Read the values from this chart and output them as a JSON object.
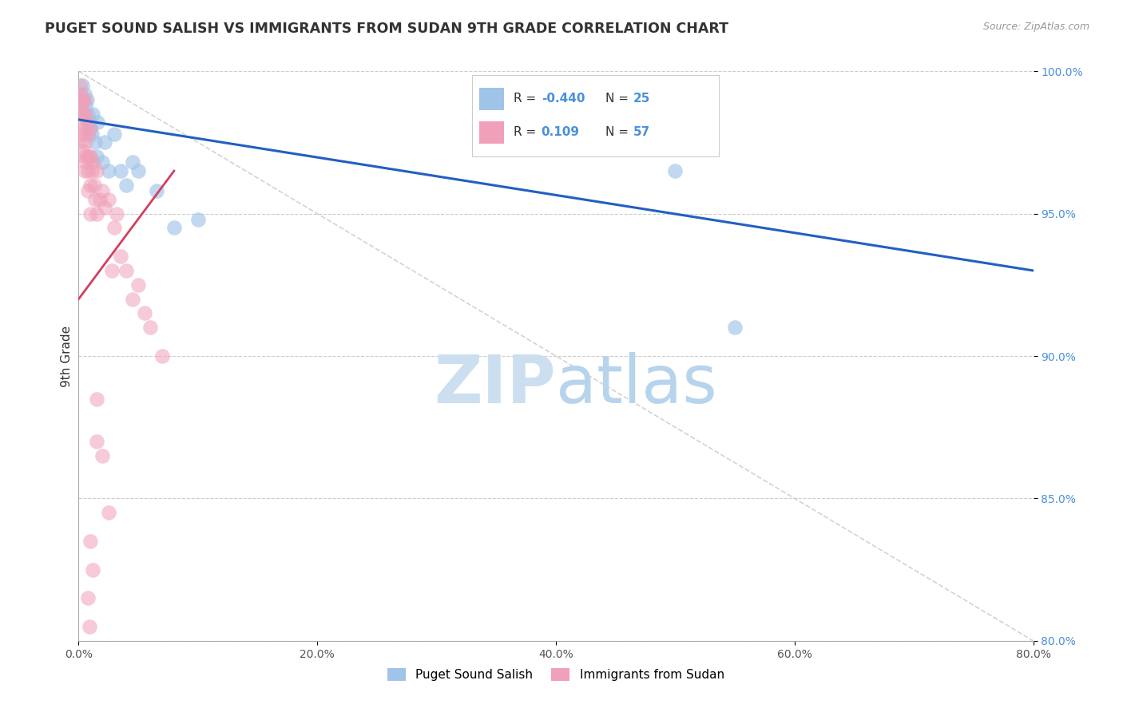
{
  "title": "PUGET SOUND SALISH VS IMMIGRANTS FROM SUDAN 9TH GRADE CORRELATION CHART",
  "source": "Source: ZipAtlas.com",
  "ylabel": "9th Grade",
  "xlim": [
    0.0,
    80.0
  ],
  "ylim": [
    80.0,
    100.0
  ],
  "r_blue": -0.44,
  "n_blue": 25,
  "r_pink": 0.109,
  "n_pink": 57,
  "blue_color": "#a0c4e8",
  "pink_color": "#f0a0b8",
  "blue_line_color": "#2060c0",
  "pink_line_color": "#d04060",
  "ref_line_color": "#c0c0c0",
  "blue_scatter_x": [
    0.3,
    0.5,
    0.6,
    0.7,
    0.8,
    0.9,
    1.0,
    1.1,
    1.2,
    1.4,
    1.5,
    1.6,
    2.0,
    2.2,
    2.5,
    3.0,
    3.5,
    4.0,
    4.5,
    5.0,
    6.5,
    8.0,
    10.0,
    50.0,
    55.0
  ],
  "blue_scatter_y": [
    99.5,
    99.2,
    98.8,
    99.0,
    98.5,
    98.2,
    98.0,
    97.8,
    98.5,
    97.5,
    97.0,
    98.2,
    96.8,
    97.5,
    96.5,
    97.8,
    96.5,
    96.0,
    96.8,
    96.5,
    95.8,
    94.5,
    94.8,
    96.5,
    91.0
  ],
  "pink_scatter_x": [
    0.1,
    0.1,
    0.1,
    0.2,
    0.2,
    0.2,
    0.2,
    0.3,
    0.3,
    0.3,
    0.4,
    0.4,
    0.5,
    0.5,
    0.5,
    0.5,
    0.6,
    0.6,
    0.6,
    0.7,
    0.7,
    0.8,
    0.8,
    0.8,
    0.9,
    1.0,
    1.0,
    1.0,
    1.0,
    1.1,
    1.2,
    1.3,
    1.4,
    1.5,
    1.5,
    1.8,
    2.0,
    2.2,
    2.5,
    3.0,
    3.2,
    3.5,
    4.0,
    4.5,
    5.0,
    5.5,
    6.0,
    7.0,
    1.5,
    1.5,
    2.0,
    2.5,
    1.0,
    1.2,
    0.8,
    0.9,
    2.8
  ],
  "pink_scatter_y": [
    99.5,
    99.0,
    98.5,
    99.2,
    98.8,
    98.0,
    97.5,
    99.0,
    98.5,
    97.8,
    98.5,
    97.2,
    99.0,
    98.0,
    97.0,
    96.5,
    98.5,
    97.5,
    96.8,
    98.2,
    97.0,
    97.8,
    96.5,
    95.8,
    97.0,
    98.0,
    97.0,
    96.0,
    95.0,
    96.5,
    96.8,
    96.0,
    95.5,
    96.5,
    95.0,
    95.5,
    95.8,
    95.2,
    95.5,
    94.5,
    95.0,
    93.5,
    93.0,
    92.0,
    92.5,
    91.5,
    91.0,
    90.0,
    88.5,
    87.0,
    86.5,
    84.5,
    83.5,
    82.5,
    81.5,
    80.5,
    93.0
  ],
  "blue_line_x0": 0.0,
  "blue_line_y0": 98.3,
  "blue_line_x1": 80.0,
  "blue_line_y1": 93.0,
  "pink_line_x0": 0.0,
  "pink_line_y0": 92.0,
  "pink_line_x1": 8.0,
  "pink_line_y1": 96.5
}
